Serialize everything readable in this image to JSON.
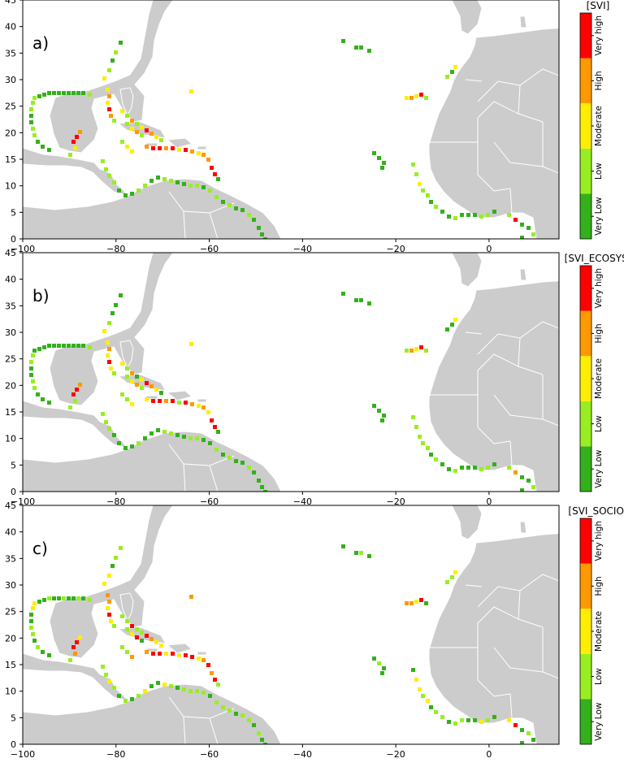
{
  "panels": [
    {
      "label": "a)",
      "colorbar_title": "[SVI]"
    },
    {
      "label": "b)",
      "colorbar_title": "[SVI_ECOSYS]"
    },
    {
      "label": "c)",
      "colorbar_title": "[SVI_SOCIO]"
    }
  ],
  "axes": {
    "x_ticks": [
      "−100",
      "−80",
      "−60",
      "−40",
      "−20",
      "0"
    ],
    "y_ticks": [
      "0",
      "5",
      "10",
      "15",
      "20",
      "25",
      "30",
      "35",
      "40",
      "45"
    ],
    "lon_range": [
      -100,
      15
    ],
    "lat_range": [
      0,
      45
    ]
  },
  "legend_classes": [
    {
      "label": "Very Low",
      "color": "#33b01b"
    },
    {
      "label": "Low",
      "color": "#99ee22"
    },
    {
      "label": "Moderate",
      "color": "#ffee00"
    },
    {
      "label": "High",
      "color": "#ff9900"
    },
    {
      "label": "Very high",
      "color": "#ff0000"
    }
  ],
  "colors": {
    "land": "#cccccc",
    "ocean": "#ffffff"
  }
}
